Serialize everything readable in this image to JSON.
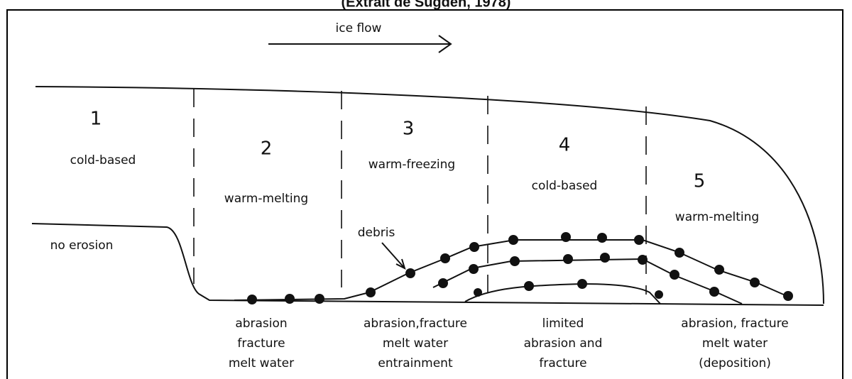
{
  "title": "(Extrait de Sugden, 1978)",
  "flow_label": "ice flow",
  "zones": [
    {
      "number": "1",
      "label": "cold-based"
    },
    {
      "number": "2",
      "label": "warm-melting"
    },
    {
      "number": "3",
      "label": "warm-freezing"
    },
    {
      "number": "4",
      "label": "cold-based"
    },
    {
      "number": "5",
      "label": "warm-melting"
    }
  ],
  "annotations": {
    "no_erosion": "no erosion",
    "debris": "debris"
  },
  "processes": [
    [
      "abrasion",
      "fracture",
      "melt water"
    ],
    [
      "abrasion,fracture",
      "melt water",
      "entrainment"
    ],
    [
      "limited",
      "abrasion and",
      "fracture"
    ],
    [
      "abrasion, fracture",
      "melt water",
      "(deposition)"
    ]
  ]
}
